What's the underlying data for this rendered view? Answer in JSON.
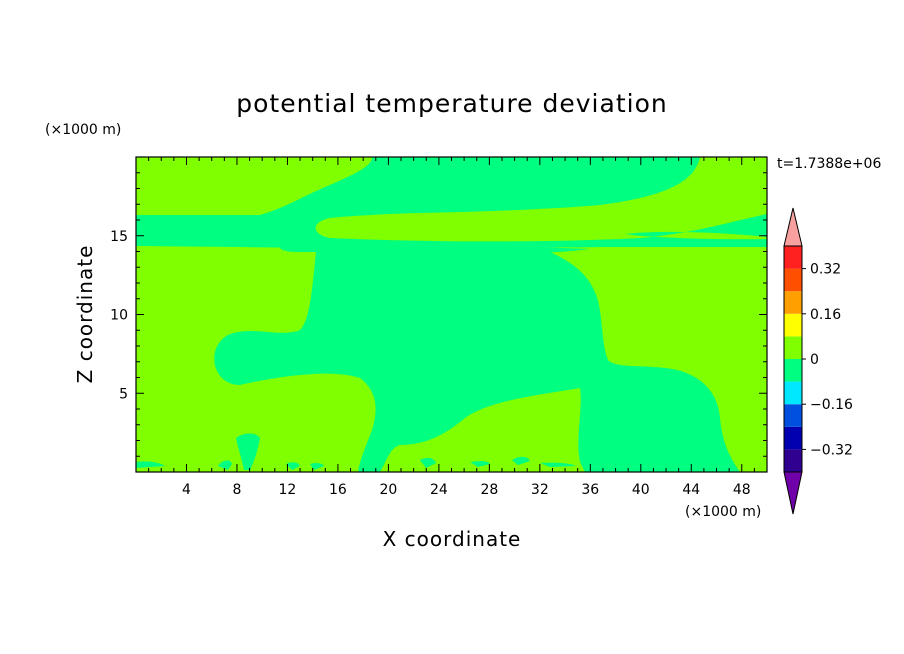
{
  "chart_data": {
    "type": "heatmap",
    "title": "potential temperature deviation",
    "xlabel": "X coordinate",
    "ylabel": "Z coordinate",
    "x_unit": "(×1000 m)",
    "y_unit": "(×1000 m)",
    "time_label": "t=1.7388e+06",
    "xlim": [
      0,
      50
    ],
    "ylim": [
      0,
      20
    ],
    "x_ticks": [
      4,
      8,
      12,
      16,
      20,
      24,
      28,
      32,
      36,
      40,
      44,
      48
    ],
    "y_ticks": [
      5,
      10,
      15
    ],
    "colorbar": {
      "levels": [
        -0.4,
        -0.32,
        -0.24,
        -0.16,
        -0.08,
        0,
        0.08,
        0.16,
        0.24,
        0.32,
        0.4
      ],
      "colors": [
        "#300090",
        "#0000b0",
        "#0050e0",
        "#00e8ff",
        "#00ff80",
        "#80ff00",
        "#ffff00",
        "#ffa000",
        "#ff5000",
        "#ff2020"
      ],
      "under_color": "#7000a8",
      "over_color": "#f8a0a0",
      "tick_labels": [
        "0.32",
        "0.16",
        "0",
        "−0.16",
        "−0.32"
      ],
      "tick_values": [
        0.32,
        0.16,
        0,
        -0.16,
        -0.32
      ]
    },
    "regions": {
      "background_class": "0 to 0.08",
      "background_color": "#80ff00",
      "anomaly_class": "-0.08 to 0",
      "anomaly_color": "#00ff80"
    }
  }
}
